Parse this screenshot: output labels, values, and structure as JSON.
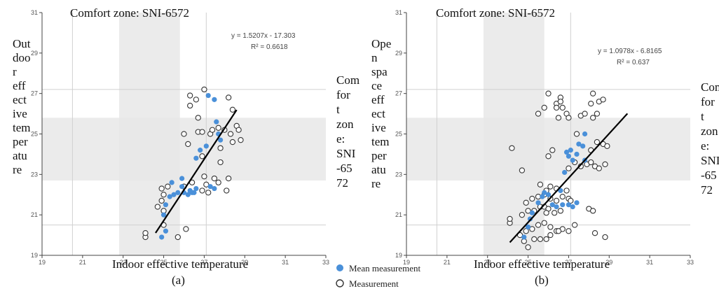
{
  "chart_data": [
    {
      "panel": "(a)",
      "type": "scatter",
      "title": "Comfort zone: SNI-6572",
      "xlabel": "Indoor effective temperature",
      "ylabel": "Outdoor effective temperature",
      "right_label": "Comfort zone: SNI-6572",
      "xlim": [
        19,
        33
      ],
      "ylim": [
        19,
        31
      ],
      "xticks": [
        "19",
        "21",
        "23",
        "25",
        "27",
        "29",
        "31",
        "33"
      ],
      "yticks": [
        "19",
        "21",
        "23",
        "25",
        "27",
        "29",
        "31"
      ],
      "equation": "y = 1.5207x - 17.303",
      "r2": "R² = 0.6618",
      "comfort_x": [
        22.8,
        25.8
      ],
      "comfort_y": [
        22.7,
        25.8
      ],
      "hlines": [
        20.5,
        27.2
      ],
      "vlines": [
        20.5,
        27.1
      ],
      "trendline": {
        "slope": 1.5207,
        "intercept": -17.303,
        "x": [
          24.6,
          28.6
        ]
      },
      "series": [
        {
          "name": "Mean measurement",
          "points": [
            [
              24.9,
              19.9
            ],
            [
              25.1,
              20.2
            ],
            [
              25.0,
              21.0
            ],
            [
              25.1,
              21.5
            ],
            [
              25.3,
              21.9
            ],
            [
              25.5,
              22.0
            ],
            [
              25.7,
              22.1
            ],
            [
              26.0,
              22.1
            ],
            [
              26.2,
              22.0
            ],
            [
              26.4,
              22.1
            ],
            [
              26.5,
              22.1
            ],
            [
              26.6,
              22.3
            ],
            [
              26.3,
              22.2
            ],
            [
              25.9,
              22.4
            ],
            [
              25.4,
              22.6
            ],
            [
              25.9,
              22.8
            ],
            [
              26.6,
              23.8
            ],
            [
              26.8,
              24.2
            ],
            [
              27.1,
              24.4
            ],
            [
              27.3,
              22.4
            ],
            [
              27.5,
              22.3
            ],
            [
              27.6,
              25.6
            ],
            [
              27.7,
              25.0
            ],
            [
              27.8,
              24.7
            ],
            [
              27.2,
              26.9
            ],
            [
              27.5,
              26.7
            ]
          ]
        },
        {
          "name": "Measurement",
          "points": [
            [
              24.1,
              19.9
            ],
            [
              24.1,
              20.1
            ],
            [
              25.0,
              20.5
            ],
            [
              24.9,
              21.7
            ],
            [
              25.0,
              22.0
            ],
            [
              24.9,
              22.3
            ],
            [
              25.2,
              22.4
            ],
            [
              24.7,
              21.4
            ],
            [
              25.0,
              21.2
            ],
            [
              25.7,
              19.9
            ],
            [
              26.1,
              20.3
            ],
            [
              26.0,
              22.4
            ],
            [
              26.4,
              22.6
            ],
            [
              26.9,
              22.2
            ],
            [
              27.1,
              22.5
            ],
            [
              27.0,
              22.9
            ],
            [
              27.2,
              22.1
            ],
            [
              27.7,
              22.6
            ],
            [
              27.5,
              22.8
            ],
            [
              28.1,
              22.2
            ],
            [
              28.2,
              22.8
            ],
            [
              27.8,
              23.6
            ],
            [
              26.9,
              23.9
            ],
            [
              27.3,
              25.0
            ],
            [
              27.8,
              24.3
            ],
            [
              28.0,
              25.2
            ],
            [
              28.3,
              25.0
            ],
            [
              28.6,
              25.4
            ],
            [
              28.7,
              25.2
            ],
            [
              28.4,
              24.6
            ],
            [
              28.8,
              24.7
            ],
            [
              26.7,
              25.1
            ],
            [
              26.9,
              25.1
            ],
            [
              26.0,
              25.0
            ],
            [
              26.2,
              24.5
            ],
            [
              27.4,
              25.2
            ],
            [
              27.7,
              25.3
            ],
            [
              26.7,
              25.8
            ],
            [
              26.6,
              26.7
            ],
            [
              27.0,
              27.2
            ],
            [
              26.3,
              26.9
            ],
            [
              26.3,
              26.4
            ],
            [
              28.2,
              26.8
            ],
            [
              28.4,
              26.2
            ]
          ]
        }
      ]
    },
    {
      "panel": "(b)",
      "type": "scatter",
      "title": "Comfort zone: SNI-6572",
      "xlabel": "Indoor effective temperature",
      "ylabel": "Open space effective temperature",
      "right_label": "Comfort zone: SNI-6572",
      "xlim": [
        19,
        33
      ],
      "ylim": [
        19,
        31
      ],
      "xticks": [
        "19",
        "21",
        "23",
        "25",
        "27",
        "29",
        "31",
        "33"
      ],
      "yticks": [
        "19",
        "21",
        "23",
        "25",
        "27",
        "29",
        "31"
      ],
      "equation": "y = 1.0978x - 6.8165",
      "r2": "R² = 0.637",
      "comfort_x": [
        22.8,
        25.8
      ],
      "comfort_y": [
        22.7,
        25.8
      ],
      "hlines": [
        20.5,
        27.2
      ],
      "vlines": [
        20.5,
        27.1
      ],
      "trendline": {
        "slope": 1.0978,
        "intercept": -6.8165,
        "x": [
          24.1,
          29.9
        ]
      },
      "series": [
        {
          "name": "Mean measurement",
          "points": [
            [
              24.8,
              19.9
            ],
            [
              25.0,
              20.4
            ],
            [
              25.1,
              20.8
            ],
            [
              25.2,
              21.1
            ],
            [
              25.5,
              21.6
            ],
            [
              25.7,
              21.9
            ],
            [
              25.8,
              22.1
            ],
            [
              26.0,
              22.0
            ],
            [
              26.2,
              21.5
            ],
            [
              26.4,
              21.4
            ],
            [
              26.7,
              21.5
            ],
            [
              27.0,
              21.5
            ],
            [
              27.2,
              21.4
            ],
            [
              27.4,
              21.6
            ],
            [
              26.6,
              22.2
            ],
            [
              26.8,
              23.1
            ],
            [
              27.0,
              23.9
            ],
            [
              27.2,
              23.7
            ],
            [
              27.4,
              24.0
            ],
            [
              27.5,
              24.5
            ],
            [
              27.7,
              24.4
            ],
            [
              27.8,
              23.7
            ],
            [
              27.8,
              25.0
            ],
            [
              26.9,
              24.1
            ],
            [
              27.1,
              24.2
            ]
          ]
        },
        {
          "name": "Measurement",
          "points": [
            [
              24.1,
              20.6
            ],
            [
              24.1,
              20.8
            ],
            [
              24.6,
              20.0
            ],
            [
              24.8,
              19.7
            ],
            [
              25.0,
              19.4
            ],
            [
              25.3,
              19.8
            ],
            [
              25.6,
              19.8
            ],
            [
              25.9,
              19.8
            ],
            [
              24.9,
              20.2
            ],
            [
              25.2,
              20.3
            ],
            [
              25.5,
              20.5
            ],
            [
              25.8,
              20.6
            ],
            [
              26.1,
              20.4
            ],
            [
              26.4,
              20.2
            ],
            [
              26.7,
              20.3
            ],
            [
              27.0,
              20.2
            ],
            [
              27.3,
              20.5
            ],
            [
              26.1,
              20.0
            ],
            [
              26.5,
              20.2
            ],
            [
              24.7,
              21.0
            ],
            [
              25.0,
              21.2
            ],
            [
              25.3,
              21.2
            ],
            [
              25.6,
              21.4
            ],
            [
              25.8,
              21.4
            ],
            [
              26.0,
              21.3
            ],
            [
              26.3,
              21.1
            ],
            [
              26.6,
              21.2
            ],
            [
              24.9,
              21.6
            ],
            [
              25.2,
              21.8
            ],
            [
              25.5,
              21.9
            ],
            [
              25.8,
              22.0
            ],
            [
              26.1,
              21.8
            ],
            [
              26.4,
              21.7
            ],
            [
              26.7,
              21.9
            ],
            [
              27.0,
              21.8
            ],
            [
              26.1,
              22.4
            ],
            [
              26.4,
              22.3
            ],
            [
              26.9,
              22.2
            ],
            [
              25.9,
              22.2
            ],
            [
              25.6,
              22.5
            ],
            [
              25.9,
              21.1
            ],
            [
              27.1,
              21.7
            ],
            [
              28.0,
              21.3
            ],
            [
              28.2,
              21.2
            ],
            [
              28.3,
              20.1
            ],
            [
              28.8,
              19.9
            ],
            [
              24.7,
              23.2
            ],
            [
              26.0,
              23.9
            ],
            [
              26.2,
              24.2
            ],
            [
              27.0,
              23.3
            ],
            [
              27.3,
              23.6
            ],
            [
              27.6,
              23.4
            ],
            [
              27.9,
              23.5
            ],
            [
              28.1,
              23.6
            ],
            [
              28.3,
              23.4
            ],
            [
              28.5,
              23.3
            ],
            [
              28.8,
              23.5
            ],
            [
              28.1,
              24.2
            ],
            [
              28.4,
              24.6
            ],
            [
              28.7,
              24.5
            ],
            [
              28.9,
              24.4
            ],
            [
              27.6,
              25.9
            ],
            [
              27.4,
              25.0
            ],
            [
              26.5,
              25.8
            ],
            [
              26.7,
              26.3
            ],
            [
              26.9,
              26.0
            ],
            [
              27.0,
              25.8
            ],
            [
              26.4,
              26.5
            ],
            [
              26.4,
              26.3
            ],
            [
              26.6,
              26.8
            ],
            [
              25.5,
              26.0
            ],
            [
              25.8,
              26.3
            ],
            [
              26.0,
              27.0
            ],
            [
              26.6,
              26.6
            ],
            [
              27.8,
              26.0
            ],
            [
              28.1,
              26.5
            ],
            [
              28.2,
              27.0
            ],
            [
              28.5,
              26.6
            ],
            [
              28.7,
              26.7
            ],
            [
              28.2,
              25.8
            ],
            [
              28.4,
              26.0
            ],
            [
              24.2,
              24.3
            ]
          ]
        }
      ]
    }
  ],
  "legend": {
    "mean_label": "Mean measurement",
    "measurement_label": "Measurement"
  },
  "colors": {
    "mean": "#4a90d9",
    "measurement": "#333333",
    "comfort_band": "#e8e8e8",
    "trend": "#000000"
  }
}
